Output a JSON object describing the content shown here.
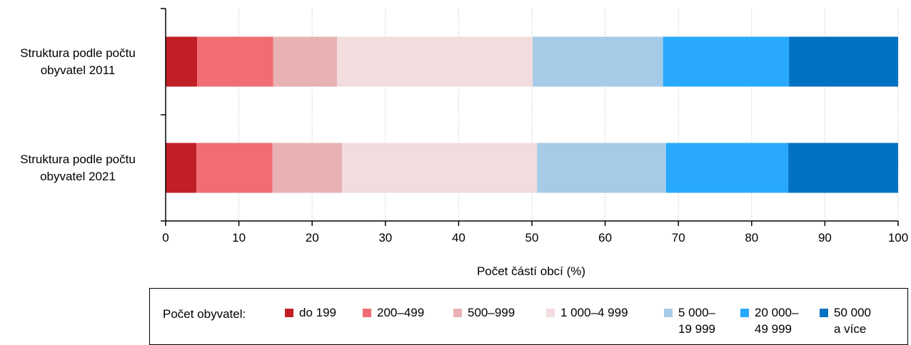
{
  "chart_data": {
    "type": "bar",
    "orientation": "horizontal",
    "stacked": true,
    "categories": [
      "Struktura podle počtu\nobyvatel 2011",
      "Struktura podle počtu\nobyvatel 2021"
    ],
    "series": [
      {
        "name": "do 199",
        "color": "#c01f26",
        "values": [
          4.3,
          4.2
        ]
      },
      {
        "name": "200–499",
        "color": "#f06d73",
        "values": [
          10.4,
          10.4
        ]
      },
      {
        "name": "500–999",
        "color": "#e8b2b5",
        "values": [
          8.7,
          9.5
        ]
      },
      {
        "name": "1 000–4 999",
        "color": "#f2dcdd",
        "values": [
          26.7,
          26.6
        ]
      },
      {
        "name": "5 000–\n19 999",
        "color": "#a6cbe6",
        "values": [
          17.8,
          17.6
        ]
      },
      {
        "name": "20 000–\n49 999",
        "color": "#29a9fc",
        "values": [
          17.2,
          16.7
        ]
      },
      {
        "name": "50 000\na více",
        "color": "#0072c1",
        "values": [
          14.9,
          15.0
        ]
      }
    ],
    "xlabel": "Počet částí obcí (%)",
    "xlim": [
      0,
      100
    ],
    "xticks": [
      0,
      10,
      20,
      30,
      40,
      50,
      60,
      70,
      80,
      90,
      100
    ],
    "grid": "vertical-dotted",
    "legend_title": "Počet obyvatel:",
    "legend_placement": "bottom"
  }
}
